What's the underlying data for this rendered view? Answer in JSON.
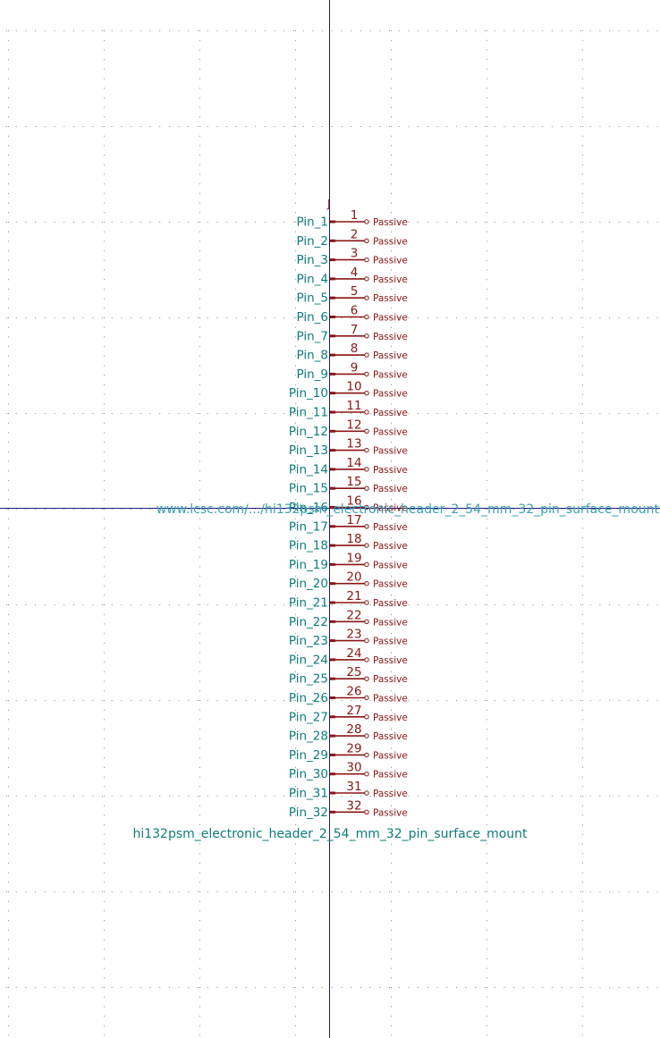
{
  "colors": {
    "background": "#ffffff",
    "grid": "#8a8a8a",
    "axis": "#1a1a7a",
    "pin_line": "#8a1515",
    "pin_name": "#0e7b7b",
    "pin_number": "#8a1515",
    "electrical_type": "#8a1515",
    "field_value": "#0e7b7b",
    "field_footprint": "#3aa0b0"
  },
  "symbol": {
    "reference": "J",
    "value": "hi132psm_electronic_header_2_54_mm_32_pin_surface_mount",
    "footprint": "www.lcsc.com/.../hi132psm_electronic_header_2_54_mm_32_pin_surface_mount",
    "pins": [
      {
        "number": "1",
        "name": "Pin_1",
        "type": "Passive"
      },
      {
        "number": "2",
        "name": "Pin_2",
        "type": "Passive"
      },
      {
        "number": "3",
        "name": "Pin_3",
        "type": "Passive"
      },
      {
        "number": "4",
        "name": "Pin_4",
        "type": "Passive"
      },
      {
        "number": "5",
        "name": "Pin_5",
        "type": "Passive"
      },
      {
        "number": "6",
        "name": "Pin_6",
        "type": "Passive"
      },
      {
        "number": "7",
        "name": "Pin_7",
        "type": "Passive"
      },
      {
        "number": "8",
        "name": "Pin_8",
        "type": "Passive"
      },
      {
        "number": "9",
        "name": "Pin_9",
        "type": "Passive"
      },
      {
        "number": "10",
        "name": "Pin_10",
        "type": "Passive"
      },
      {
        "number": "11",
        "name": "Pin_11",
        "type": "Passive"
      },
      {
        "number": "12",
        "name": "Pin_12",
        "type": "Passive"
      },
      {
        "number": "13",
        "name": "Pin_13",
        "type": "Passive"
      },
      {
        "number": "14",
        "name": "Pin_14",
        "type": "Passive"
      },
      {
        "number": "15",
        "name": "Pin_15",
        "type": "Passive"
      },
      {
        "number": "16",
        "name": "Pin_16",
        "type": "Passive"
      },
      {
        "number": "17",
        "name": "Pin_17",
        "type": "Passive"
      },
      {
        "number": "18",
        "name": "Pin_18",
        "type": "Passive"
      },
      {
        "number": "19",
        "name": "Pin_19",
        "type": "Passive"
      },
      {
        "number": "20",
        "name": "Pin_20",
        "type": "Passive"
      },
      {
        "number": "21",
        "name": "Pin_21",
        "type": "Passive"
      },
      {
        "number": "22",
        "name": "Pin_22",
        "type": "Passive"
      },
      {
        "number": "23",
        "name": "Pin_23",
        "type": "Passive"
      },
      {
        "number": "24",
        "name": "Pin_24",
        "type": "Passive"
      },
      {
        "number": "25",
        "name": "Pin_25",
        "type": "Passive"
      },
      {
        "number": "26",
        "name": "Pin_26",
        "type": "Passive"
      },
      {
        "number": "27",
        "name": "Pin_27",
        "type": "Passive"
      },
      {
        "number": "28",
        "name": "Pin_28",
        "type": "Passive"
      },
      {
        "number": "29",
        "name": "Pin_29",
        "type": "Passive"
      },
      {
        "number": "30",
        "name": "Pin_30",
        "type": "Passive"
      },
      {
        "number": "31",
        "name": "Pin_31",
        "type": "Passive"
      },
      {
        "number": "32",
        "name": "Pin_32",
        "type": "Passive"
      }
    ]
  }
}
